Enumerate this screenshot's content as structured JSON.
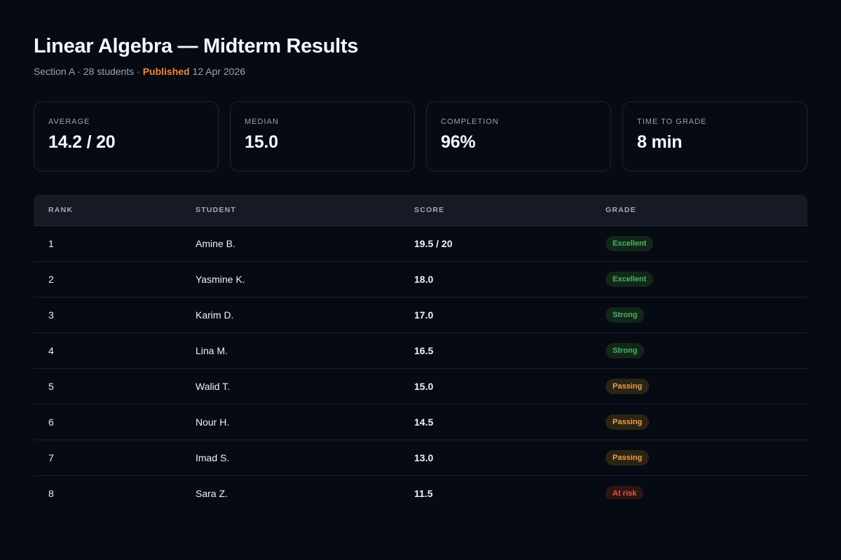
{
  "header": {
    "title": "Linear Algebra — Midterm Results",
    "section": "Section A",
    "separator": "·",
    "student_count": "28 students",
    "status": "Published",
    "date": "12 Apr 2026"
  },
  "stats": [
    {
      "label": "AVERAGE",
      "value": "14.2 / 20"
    },
    {
      "label": "MEDIAN",
      "value": "15.0"
    },
    {
      "label": "COMPLETION",
      "value": "96%"
    },
    {
      "label": "TIME TO GRADE",
      "value": "8 min"
    }
  ],
  "table": {
    "columns": [
      "RANK",
      "STUDENT",
      "SCORE",
      "GRADE"
    ],
    "rows": [
      {
        "rank": "1",
        "student": "Amine B.",
        "score": "19.5 / 20",
        "grade": "Excellent",
        "grade_type": "excellent"
      },
      {
        "rank": "2",
        "student": "Yasmine K.",
        "score": "18.0",
        "grade": "Excellent",
        "grade_type": "excellent"
      },
      {
        "rank": "3",
        "student": "Karim D.",
        "score": "17.0",
        "grade": "Strong",
        "grade_type": "strong"
      },
      {
        "rank": "4",
        "student": "Lina M.",
        "score": "16.5",
        "grade": "Strong",
        "grade_type": "strong"
      },
      {
        "rank": "5",
        "student": "Walid T.",
        "score": "15.0",
        "grade": "Passing",
        "grade_type": "passing"
      },
      {
        "rank": "6",
        "student": "Nour H.",
        "score": "14.5",
        "grade": "Passing",
        "grade_type": "passing"
      },
      {
        "rank": "7",
        "student": "Imad S.",
        "score": "13.0",
        "grade": "Passing",
        "grade_type": "passing"
      },
      {
        "rank": "8",
        "student": "Sara Z.",
        "score": "11.5",
        "grade": "At risk",
        "grade_type": "risk"
      }
    ]
  },
  "colors": {
    "background": "#060a12",
    "accent_published": "#f0863a",
    "grade_good": "#4cb45e",
    "grade_passing": "#e8a048",
    "grade_risk": "#e2583e",
    "table_header_bg": "#151a24"
  }
}
